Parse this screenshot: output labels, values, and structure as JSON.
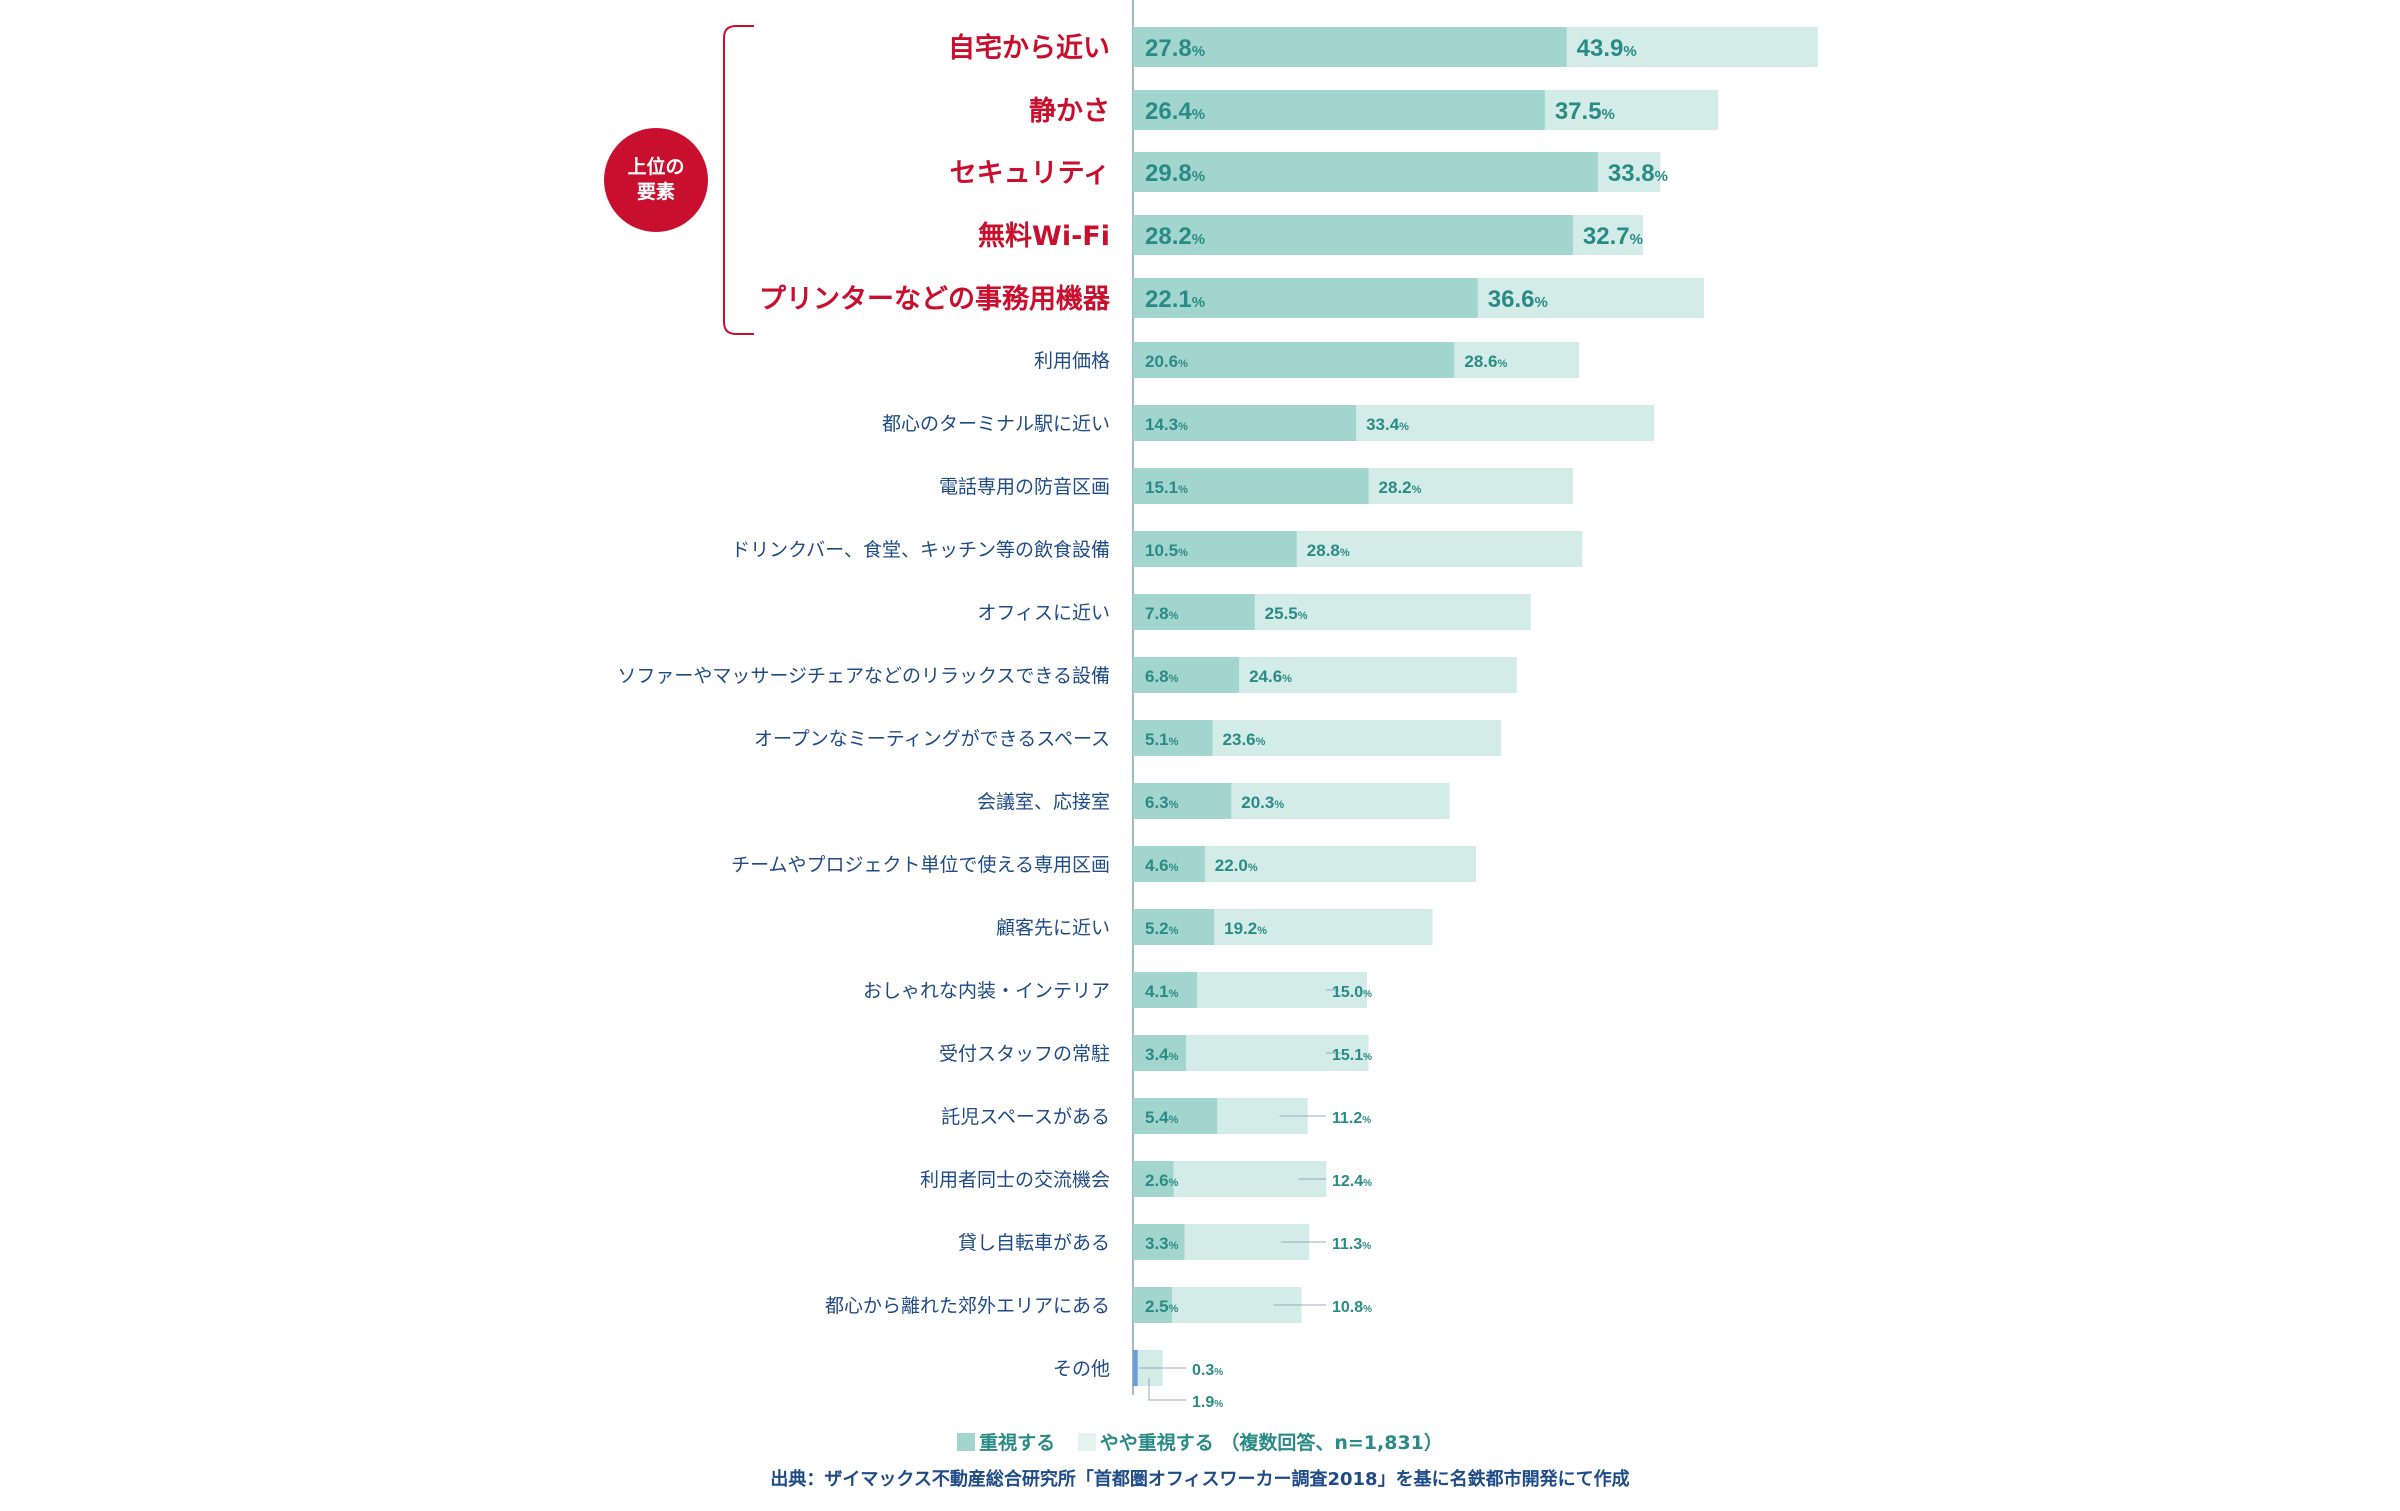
{
  "chart_data": {
    "type": "bar",
    "unit": "%",
    "series": [
      {
        "name": "重視する"
      },
      {
        "name": "やや重視する"
      }
    ],
    "rows": [
      {
        "label": "自宅から近い",
        "important": 27.8,
        "somewhat": 43.9
      },
      {
        "label": "静かさ",
        "important": 26.4,
        "somewhat": 37.5
      },
      {
        "label": "セキュリティ",
        "important": 29.8,
        "somewhat": 33.8
      },
      {
        "label": "無料Wi-Fi",
        "important": 28.2,
        "somewhat": 32.7
      },
      {
        "label": "プリンターなどの事務用機器",
        "important": 22.1,
        "somewhat": 36.6
      },
      {
        "label": "利用価格",
        "important": 20.6,
        "somewhat": 28.6
      },
      {
        "label": "都心のターミナル駅に近い",
        "important": 14.3,
        "somewhat": 33.4
      },
      {
        "label": "電話専用の防音区画",
        "important": 15.1,
        "somewhat": 28.2
      },
      {
        "label": "ドリンクバー、食堂、キッチン等の飲食設備",
        "important": 10.5,
        "somewhat": 28.8
      },
      {
        "label": "オフィスに近い",
        "important": 7.8,
        "somewhat": 25.5
      },
      {
        "label": "ソファーやマッサージチェアなどのリラックスできる設備",
        "important": 6.8,
        "somewhat": 24.6
      },
      {
        "label": "オープンなミーティングができるスペース",
        "important": 5.1,
        "somewhat": 23.6
      },
      {
        "label": "会議室、応接室",
        "important": 6.3,
        "somewhat": 20.3
      },
      {
        "label": "チームやプロジェクト単位で使える専用区画",
        "important": 4.6,
        "somewhat": 22.0
      },
      {
        "label": "顧客先に近い",
        "important": 5.2,
        "somewhat": 19.2
      },
      {
        "label": "おしゃれな内装・インテリア",
        "important": 4.1,
        "somewhat": 15.0
      },
      {
        "label": "受付スタッフの常駐",
        "important": 3.4,
        "somewhat": 15.1
      },
      {
        "label": "託児スペースがある",
        "important": 5.4,
        "somewhat": 11.2
      },
      {
        "label": "利用者同士の交流機会",
        "important": 2.6,
        "somewhat": 12.4
      },
      {
        "label": "貸し自転車がある",
        "important": 3.3,
        "somewhat": 11.3
      },
      {
        "label": "都心から離れた郊外エリアにある",
        "important": 2.5,
        "somewhat": 10.8
      },
      {
        "label": "その他",
        "important": 0.3,
        "somewhat": 1.9
      }
    ],
    "highlight_count": 5,
    "highlight_label": [
      "上位の",
      "要素"
    ],
    "colors": {
      "important": "#a3d5cf",
      "somewhat": "#d3ece7",
      "top_label": "#c8102e",
      "label": "#1f4b86",
      "value": "#2a8b86",
      "other_marker": "#6a9ed8"
    }
  },
  "legend": {
    "important": "重視する",
    "somewhat": "やや重視する",
    "note": "（複数回答、n=1,831）"
  },
  "source": "出典：ザイマックス不動産総合研究所「首都圏オフィスワーカー調査2018」を基に名鉄都市開発にて作成"
}
